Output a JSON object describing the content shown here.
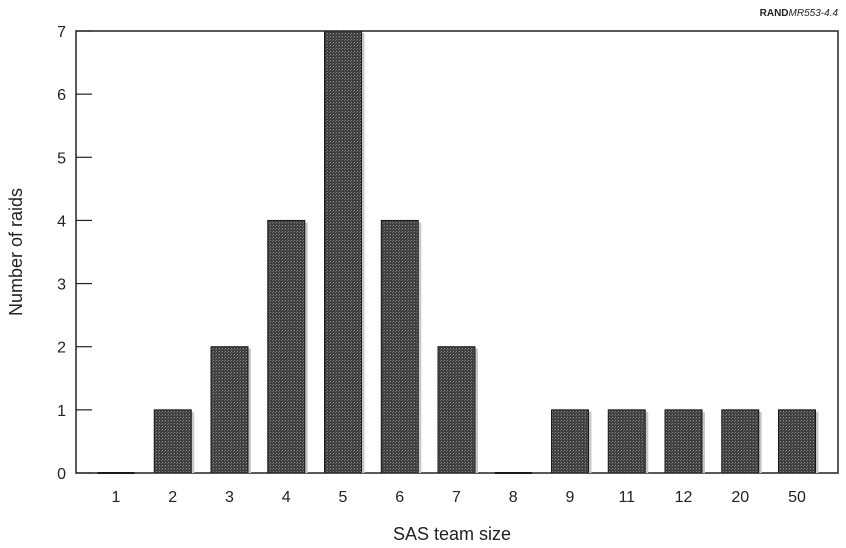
{
  "chart_data": {
    "type": "bar",
    "categories": [
      "1",
      "2",
      "3",
      "4",
      "5",
      "6",
      "7",
      "8",
      "9",
      "11",
      "12",
      "20",
      "50"
    ],
    "values": [
      0,
      1,
      2,
      4,
      7,
      4,
      2,
      0,
      1,
      1,
      1,
      1,
      1
    ],
    "xlabel": "SAS team size",
    "ylabel": "Number of raids",
    "ylim": [
      0,
      7
    ],
    "yticks": [
      0,
      1,
      2,
      3,
      4,
      5,
      6,
      7
    ],
    "grid": false,
    "legend": "none",
    "bar_color": "#4a4a4a",
    "source": {
      "org": "RAND",
      "code": "MR553-4.4"
    }
  }
}
